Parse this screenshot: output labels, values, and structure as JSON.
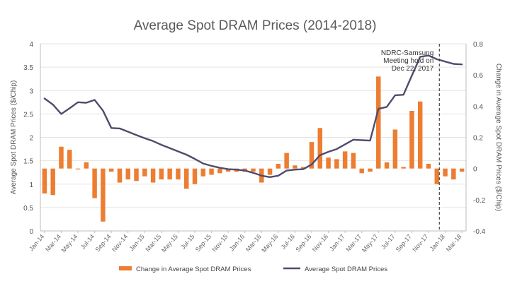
{
  "chart_data": {
    "type": "bar+line",
    "title": "Average Spot DRAM Prices (2014-2018)",
    "ylabel_left": "Average Spot DRAM Prices ($/Chip)",
    "ylabel_right": "Change in Average Spot DRAM Prices ($/Chip)",
    "ylim_left": [
      0,
      4
    ],
    "ylim_right": [
      -0.4,
      0.8
    ],
    "yticks_left": [
      "0",
      "0.5",
      "1",
      "1.5",
      "2",
      "2.5",
      "3",
      "3.5",
      "4"
    ],
    "yticks_left_values": [
      0,
      0.5,
      1,
      1.5,
      2,
      2.5,
      3,
      3.5,
      4
    ],
    "yticks_right": [
      "-0.4",
      "-0.2",
      "0",
      "0.2",
      "0.4",
      "0.6",
      "0.8"
    ],
    "yticks_right_values": [
      -0.4,
      -0.2,
      0,
      0.2,
      0.4,
      0.6,
      0.8
    ],
    "months": [
      "Jan-14",
      "Feb-14",
      "Mar-14",
      "Apr-14",
      "May-14",
      "Jun-14",
      "Jul-14",
      "Aug-14",
      "Sep-14",
      "Oct-14",
      "Nov-14",
      "Dec-14",
      "Jan-15",
      "Feb-15",
      "Mar-15",
      "Apr-15",
      "May-15",
      "Jun-15",
      "Jul-15",
      "Aug-15",
      "Sep-15",
      "Oct-15",
      "Nov-15",
      "Dec-15",
      "Jan-16",
      "Feb-16",
      "Mar-16",
      "Apr-16",
      "May-16",
      "Jun-16",
      "Jul-16",
      "Aug-16",
      "Sep-16",
      "Oct-16",
      "Nov-16",
      "Dec-16",
      "Jan-17",
      "Feb-17",
      "Mar-17",
      "Apr-17",
      "May-17",
      "Jun-17",
      "Jul-17",
      "Aug-17",
      "Sep-17",
      "Oct-17",
      "Nov-17",
      "Dec-17",
      "Jan-18",
      "Feb-18",
      "Mar-18"
    ],
    "x_tick_labels": [
      "Jan-14",
      "Mar-14",
      "May-14",
      "Jul-14",
      "Sep-14",
      "Nov-14",
      "Jan-15",
      "Mar-15",
      "May-15",
      "Jul-15",
      "Sep-15",
      "Nov-15",
      "Jan-16",
      "Mar-16",
      "May-16",
      "Jul-16",
      "Sep-16",
      "Nov-16",
      "Jan-17",
      "Mar-17",
      "May-17",
      "Jul-17",
      "Sep-17",
      "Nov-17",
      "Jan-18",
      "Mar-18"
    ],
    "series": [
      {
        "name": "Change in Average Spot DRAM Prices",
        "kind": "bar",
        "axis": "right",
        "color": "#ed7d31",
        "values": [
          -0.16,
          -0.17,
          0.14,
          0.12,
          0.0,
          0.04,
          -0.19,
          -0.34,
          -0.02,
          -0.09,
          -0.07,
          -0.08,
          -0.05,
          -0.09,
          -0.07,
          -0.07,
          -0.07,
          -0.13,
          -0.1,
          -0.05,
          -0.04,
          -0.03,
          -0.02,
          -0.02,
          -0.02,
          -0.02,
          -0.09,
          -0.04,
          0.03,
          0.1,
          0.02,
          0.01,
          0.17,
          0.26,
          0.07,
          0.06,
          0.11,
          0.1,
          -0.03,
          -0.02,
          0.59,
          0.04,
          0.25,
          0.01,
          0.37,
          0.43,
          0.03,
          -0.1,
          -0.05,
          -0.07,
          -0.02
        ]
      },
      {
        "name": "Average Spot DRAM Prices",
        "kind": "line",
        "axis": "left",
        "color": "#4f4b6e",
        "values": [
          2.83,
          2.7,
          2.5,
          2.62,
          2.75,
          2.74,
          2.8,
          2.57,
          2.2,
          2.19,
          2.12,
          2.05,
          1.98,
          1.92,
          1.84,
          1.77,
          1.7,
          1.63,
          1.54,
          1.44,
          1.39,
          1.35,
          1.32,
          1.31,
          1.29,
          1.24,
          1.18,
          1.15,
          1.18,
          1.29,
          1.31,
          1.32,
          1.42,
          1.62,
          1.69,
          1.75,
          1.85,
          1.95,
          1.94,
          1.93,
          2.61,
          2.65,
          2.9,
          2.91,
          3.32,
          3.72,
          3.75,
          3.67,
          3.62,
          3.57,
          3.56
        ]
      }
    ],
    "annotation": {
      "lines": [
        "NDRC-Samsung",
        "Meeting hold on",
        "Dec 22, 2017"
      ],
      "at": "Dec-17",
      "style": "dashed vertical line"
    },
    "legend_position": "bottom-center"
  }
}
